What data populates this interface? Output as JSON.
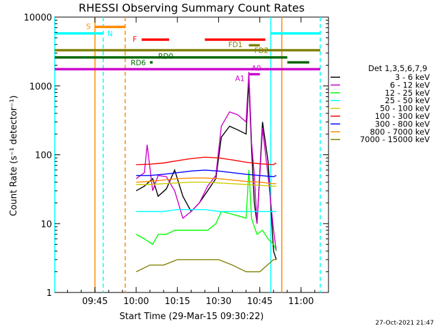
{
  "chart_data": {
    "type": "line",
    "title": "RHESSI Observing Summary Count Rates",
    "xlabel": "Start Time (29-Mar-15 09:30:22)",
    "ylabel": "Count Rate (s⁻¹ detector⁻¹)",
    "x_tick_labels": [
      "09:45",
      "10:00",
      "10:15",
      "10:30",
      "10:45",
      "11:00"
    ],
    "y_tick_labels": [
      "1",
      "10",
      "100",
      "1000",
      "10000"
    ],
    "y_scale": "log",
    "ylim": [
      1,
      10000
    ],
    "xlim": [
      "09:30:22",
      "11:10:00"
    ],
    "legend_title": "Det 1,3,5,6,7,9",
    "legend_position": "right",
    "series": [
      {
        "name": "3 - 6 keV",
        "color": "#000000",
        "x": [
          "10:00",
          "10:03",
          "10:06",
          "10:08",
          "10:11",
          "10:14",
          "10:17",
          "10:20",
          "10:23",
          "10:26",
          "10:29",
          "10:31",
          "10:34",
          "10:37",
          "10:40",
          "10:41",
          "10:42",
          "10:43",
          "10:44",
          "10:46",
          "10:48",
          "10:50",
          "10:51"
        ],
        "values": [
          30,
          35,
          45,
          25,
          32,
          60,
          25,
          15,
          20,
          30,
          45,
          180,
          260,
          230,
          200,
          1200,
          120,
          20,
          10,
          300,
          80,
          4,
          3
        ]
      },
      {
        "name": "6 - 12 keV",
        "color": "#cc00cc",
        "x": [
          "10:00",
          "10:03",
          "10:04",
          "10:06",
          "10:08",
          "10:11",
          "10:14",
          "10:17",
          "10:20",
          "10:23",
          "10:26",
          "10:29",
          "10:31",
          "10:34",
          "10:37",
          "10:40",
          "10:41",
          "10:42",
          "10:43",
          "10:44",
          "10:46",
          "10:48",
          "10:50",
          "10:51"
        ],
        "values": [
          45,
          55,
          140,
          30,
          50,
          48,
          30,
          12,
          15,
          20,
          35,
          50,
          260,
          420,
          380,
          300,
          1600,
          150,
          50,
          10,
          240,
          50,
          8,
          4
        ]
      },
      {
        "name": "12 - 25 keV",
        "color": "#00ff00",
        "x": [
          "10:00",
          "10:03",
          "10:06",
          "10:08",
          "10:11",
          "10:14",
          "10:17",
          "10:20",
          "10:23",
          "10:26",
          "10:29",
          "10:31",
          "10:34",
          "10:37",
          "10:40",
          "10:41",
          "10:42",
          "10:43",
          "10:44",
          "10:46",
          "10:48",
          "10:50",
          "10:51"
        ],
        "values": [
          7,
          6,
          5,
          7,
          7,
          8,
          8,
          8,
          8,
          8,
          10,
          15,
          14,
          13,
          12,
          60,
          12,
          9,
          7,
          8,
          6,
          5,
          4
        ]
      },
      {
        "name": "25 - 50 keV",
        "color": "#00ffff",
        "x": [
          "10:00",
          "10:05",
          "10:10",
          "10:15",
          "10:20",
          "10:25",
          "10:30",
          "10:35",
          "10:40",
          "10:45",
          "10:50",
          "10:51"
        ],
        "values": [
          15,
          15,
          15,
          16,
          16,
          16,
          15,
          15,
          15,
          15,
          15,
          15
        ]
      },
      {
        "name": "50 - 100 keV",
        "color": "#cccc00",
        "x": [
          "10:00",
          "10:05",
          "10:10",
          "10:15",
          "10:20",
          "10:25",
          "10:30",
          "10:35",
          "10:40",
          "10:45",
          "10:50",
          "10:51"
        ],
        "values": [
          37,
          37,
          38,
          39,
          40,
          40,
          39,
          38,
          37,
          36,
          35,
          35
        ]
      },
      {
        "name": "100 - 300 keV",
        "color": "#ff0000",
        "x": [
          "10:00",
          "10:05",
          "10:10",
          "10:15",
          "10:20",
          "10:25",
          "10:30",
          "10:35",
          "10:40",
          "10:45",
          "10:50",
          "10:51"
        ],
        "values": [
          72,
          73,
          76,
          82,
          88,
          92,
          90,
          84,
          78,
          74,
          72,
          76
        ]
      },
      {
        "name": "300 - 800 keV",
        "color": "#0000ff",
        "x": [
          "10:00",
          "10:05",
          "10:10",
          "10:15",
          "10:20",
          "10:25",
          "10:30",
          "10:35",
          "10:40",
          "10:45",
          "10:50",
          "10:51"
        ],
        "values": [
          50,
          50,
          52,
          55,
          58,
          60,
          58,
          55,
          52,
          50,
          48,
          50
        ]
      },
      {
        "name": "800 - 7000 keV",
        "color": "#ff8c00",
        "x": [
          "10:00",
          "10:05",
          "10:10",
          "10:15",
          "10:20",
          "10:25",
          "10:30",
          "10:35",
          "10:40",
          "10:45",
          "10:50",
          "10:51"
        ],
        "values": [
          40,
          41,
          43,
          45,
          46,
          46,
          45,
          43,
          41,
          40,
          38,
          38
        ]
      },
      {
        "name": "7000 - 15000 keV",
        "color": "#808000",
        "x": [
          "10:00",
          "10:05",
          "10:10",
          "10:15",
          "10:20",
          "10:25",
          "10:30",
          "10:35",
          "10:40",
          "10:45",
          "10:50",
          "10:51"
        ],
        "values": [
          2,
          2.5,
          2.5,
          3,
          3,
          3,
          3,
          2.5,
          2,
          2,
          3,
          3
        ]
      }
    ],
    "flag_bars": [
      {
        "label": "S",
        "color": "#ff8c00",
        "x_start": "09:45",
        "x_end": "09:56",
        "value": 7200
      },
      {
        "label": "N",
        "color": "#00ffff",
        "x_start": "09:30:22",
        "x_end": "09:48",
        "value": 5800
      },
      {
        "label": "N",
        "color": "#00ffff",
        "x_start": "10:49",
        "x_end": "11:07",
        "value": 5800
      },
      {
        "label": "F",
        "color": "#ff0000",
        "x_start": "10:02",
        "x_end": "10:12",
        "value": 4700
      },
      {
        "label": "F",
        "color": "#ff0000",
        "x_start": "10:25",
        "x_end": "10:47",
        "value": 4700
      },
      {
        "label": "FD1",
        "color": "#808000",
        "x_start": "10:41",
        "x_end": "10:45",
        "value": 3900
      },
      {
        "label": "FD2",
        "color": "#808000",
        "x_start": "09:30:22",
        "x_end": "11:07",
        "value": 3300
      },
      {
        "label": "RD0",
        "color": "#006600",
        "x_start": "09:30:22",
        "x_end": "10:55",
        "value": 2600
      },
      {
        "label": "RD6",
        "color": "#006600",
        "x_start": "10:05",
        "x_end": "10:06",
        "value": 2200
      },
      {
        "label": "RD6",
        "color": "#006600",
        "x_start": "10:55",
        "x_end": "11:03",
        "value": 2200
      },
      {
        "label": "A0",
        "color": "#cc00cc",
        "x_start": "09:30:22",
        "x_end": "11:07",
        "value": 1750
      },
      {
        "label": "A1",
        "color": "#cc00cc",
        "x_start": "10:41",
        "x_end": "10:45",
        "value": 1480
      }
    ],
    "vertical_markers": [
      {
        "x": "09:30:22",
        "color": "#00ffff",
        "style": "solid"
      },
      {
        "x": "09:45",
        "color": "#ff8c00",
        "style": "solid"
      },
      {
        "x": "09:48",
        "color": "#00ffff",
        "style": "dashed"
      },
      {
        "x": "09:56",
        "color": "#ff8c00",
        "style": "dashed"
      },
      {
        "x": "10:49",
        "color": "#00ffff",
        "style": "solid"
      },
      {
        "x": "10:53",
        "color": "#ff8c00",
        "style": "solid"
      },
      {
        "x": "11:07",
        "color": "#00ffff",
        "style": "dashed"
      }
    ],
    "footer": "27-Oct-2021 21:47"
  }
}
